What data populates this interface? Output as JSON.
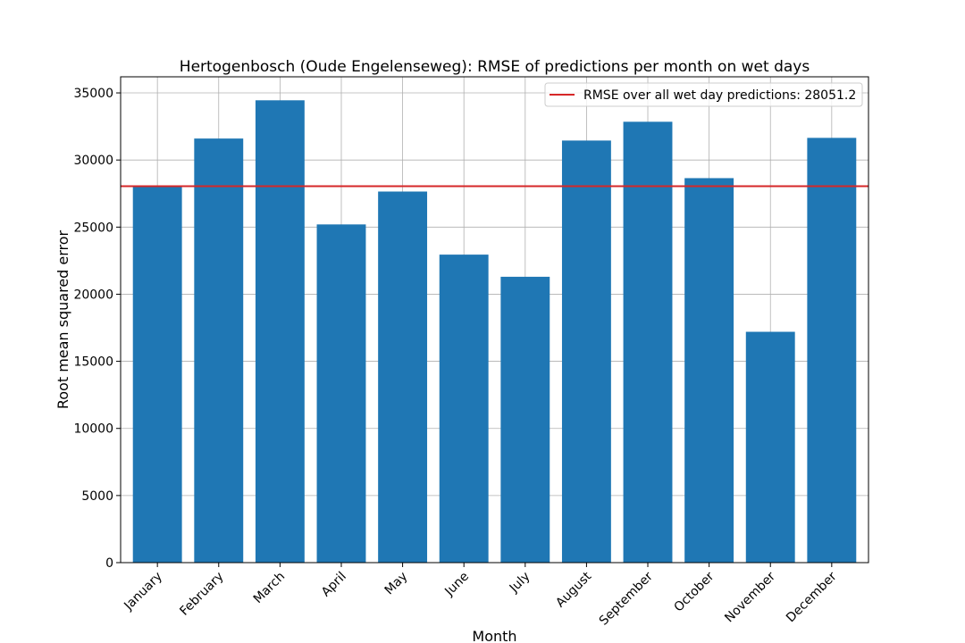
{
  "chart_data": {
    "type": "bar",
    "title": "Hertogenbosch (Oude Engelenseweg): RMSE of predictions per month on wet days",
    "xlabel": "Month",
    "ylabel": "Root mean squared error",
    "categories": [
      "January",
      "February",
      "March",
      "April",
      "May",
      "June",
      "July",
      "August",
      "September",
      "October",
      "November",
      "December"
    ],
    "values": [
      28000,
      31600,
      34450,
      25200,
      27650,
      22950,
      21300,
      31450,
      32850,
      28650,
      17200,
      31650
    ],
    "ylim": [
      0,
      36200
    ],
    "yticks": [
      0,
      5000,
      10000,
      15000,
      20000,
      25000,
      30000,
      35000
    ],
    "grid": true,
    "bar_color": "#1f77b4",
    "reference_line": {
      "value": 28051.2,
      "color": "#d62728",
      "label": "RMSE over all wet day predictions: 28051.2"
    },
    "legend_position": "top-right"
  }
}
